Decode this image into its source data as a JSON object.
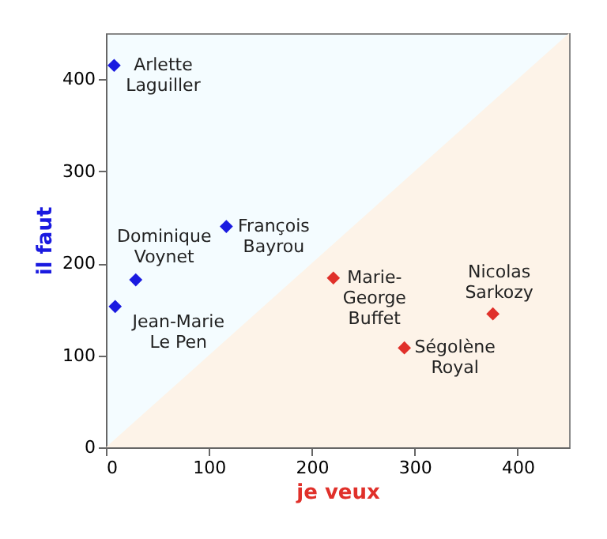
{
  "chart_data": {
    "type": "scatter",
    "xlabel": "je veux",
    "ylabel": "il faut",
    "marker": "diamond",
    "grid": false,
    "xlim": [
      0,
      450
    ],
    "ylim": [
      0,
      450
    ],
    "xticks": [
      0,
      100,
      200,
      300,
      400
    ],
    "yticks": [
      0,
      100,
      200,
      300,
      400
    ],
    "series": [
      {
        "color": "#1a1ae0",
        "x": [
          8,
          117,
          29,
          9
        ],
        "values": [
          415,
          240,
          182,
          153
        ]
      },
      {
        "color": "#e0302a",
        "x": [
          221,
          290,
          376
        ],
        "values": [
          184,
          108,
          145
        ]
      },
      {
        "type": "area",
        "marker": "none",
        "color": "#fdf3e8",
        "x": [
          0,
          450
        ],
        "values": [
          0,
          450
        ]
      }
    ],
    "annotations": [
      {
        "text": "Arlette\nLaguiller",
        "x": 8,
        "y": 415
      },
      {
        "text": "François\nBayrou",
        "x": 117,
        "y": 240
      },
      {
        "text": "Dominique\nVoynet",
        "x": 29,
        "y": 182
      },
      {
        "text": "Jean-Marie\nLe Pen",
        "x": 9,
        "y": 153
      },
      {
        "text": "Marie-\nGeorge\nBuffet",
        "x": 221,
        "y": 184
      },
      {
        "text": "Ségolène\nRoyal",
        "x": 290,
        "y": 108
      },
      {
        "text": "Nicolas\nSarkozy",
        "x": 376,
        "y": 145
      }
    ]
  }
}
